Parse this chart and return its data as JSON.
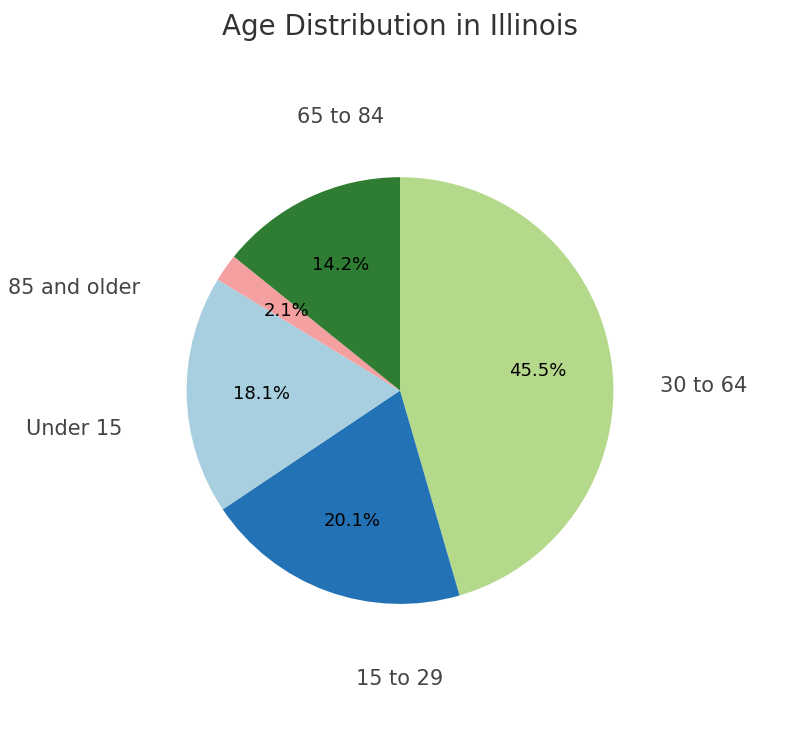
{
  "title": "Age Distribution in Illinois",
  "title_fontsize": 20,
  "labels": [
    "30 to 64",
    "15 to 29",
    "Under 15",
    "85 and older",
    "65 to 84"
  ],
  "values": [
    45.5,
    20.1,
    18.1,
    2.1,
    14.2
  ],
  "colors": [
    "#b5d98b",
    "#2272b5",
    "#a8cfe0",
    "#f4a0a0",
    "#2e7d32"
  ],
  "startangle": 90,
  "pct_fontsize": 13,
  "label_fontsize": 15
}
